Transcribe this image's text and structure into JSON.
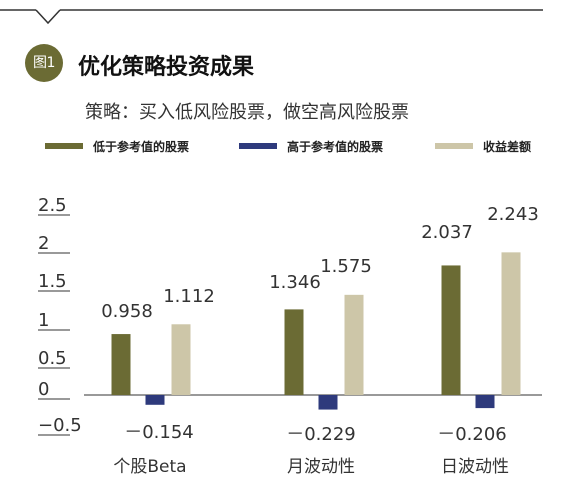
{
  "figure": {
    "badge": "图1",
    "title": "优化策略投资成果",
    "subtitle": "策略：买入低风险股票，做空高风险股票"
  },
  "colors": {
    "low": "#6b6b34",
    "high": "#2e3a7c",
    "spread": "#cdc6a8",
    "badge": "#6b6b34",
    "axis": "#333333"
  },
  "chart_data": {
    "type": "bar",
    "categories": [
      "个股Beta",
      "月波动性",
      "日波动性"
    ],
    "series": [
      {
        "name": "低于参考值的股票",
        "values": [
          0.958,
          1.346,
          2.037
        ],
        "labels": [
          "0.958",
          "1.346",
          "2.037"
        ]
      },
      {
        "name": "高于参考值的股票",
        "values": [
          -0.154,
          -0.229,
          -0.206
        ],
        "labels": [
          "－0.154",
          "－0.229",
          "－0.206"
        ]
      },
      {
        "name": "收益差额",
        "values": [
          1.112,
          1.575,
          2.243
        ],
        "labels": [
          "1.112",
          "1.575",
          "2.243"
        ]
      }
    ],
    "yticks": [
      "2.5",
      "2",
      "1.5",
      "1",
      "0.5",
      "0",
      "−0.5"
    ],
    "ytick_values": [
      2.5,
      2,
      1.5,
      1,
      0.5,
      0,
      -0.5
    ],
    "ylim": [
      -0.5,
      2.5
    ],
    "legend_position": "top",
    "grid": false
  }
}
